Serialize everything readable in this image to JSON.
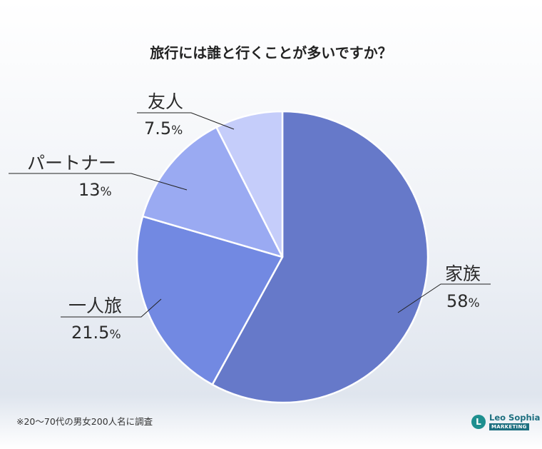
{
  "chart_data": {
    "type": "pie",
    "title": "旅行には誰と行くことが多いですか？",
    "start_angle_deg": 0,
    "direction": "clockwise",
    "slices": [
      {
        "label": "家族",
        "value": 58,
        "value_text": "58",
        "unit": "%",
        "color": "#6679c9"
      },
      {
        "label": "一人旅",
        "value": 21.5,
        "value_text": "21.5",
        "unit": "%",
        "color": "#7289e2"
      },
      {
        "label": "パートナー",
        "value": 13,
        "value_text": "13",
        "unit": "%",
        "color": "#9aaaf2"
      },
      {
        "label": "友人",
        "value": 7.5,
        "value_text": "7.5",
        "unit": "%",
        "color": "#c5cdfa"
      }
    ]
  },
  "footnote": "※20〜70代の男女200人名に調査",
  "logo": {
    "name": "Leo Sophia",
    "sub": "MARKETING"
  }
}
